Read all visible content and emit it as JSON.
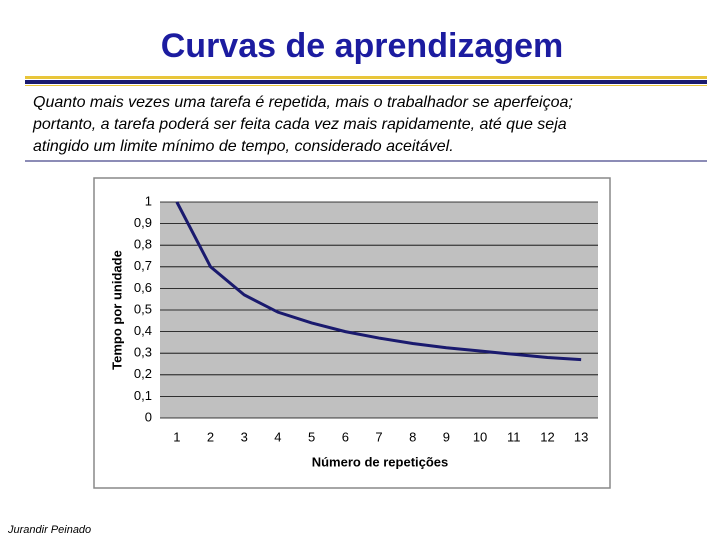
{
  "title": "Curvas de aprendizagem",
  "text_lines": [
    "Quanto mais vezes uma tarefa é repetida, mais o trabalhador se aperfeiçoa;",
    "portanto, a tarefa poderá ser feita cada vez mais rapidamente, até que seja",
    "atingido um limite mínimo de tempo, considerado aceitável."
  ],
  "footer": "Jurandir Peinado",
  "chart_data": {
    "type": "line",
    "x_label": "Número de repetições",
    "y_label": "Tempo por unidade",
    "categories": [
      "1",
      "2",
      "3",
      "4",
      "5",
      "6",
      "7",
      "8",
      "9",
      "10",
      "11",
      "12",
      "13"
    ],
    "values": [
      1,
      0.7,
      0.57,
      0.49,
      0.44,
      0.4,
      0.37,
      0.345,
      0.325,
      0.31,
      0.295,
      0.28,
      0.27
    ],
    "color": "#1a1a6e",
    "ylim": [
      0,
      1
    ],
    "yticks": [
      0,
      {
        "value": 0.1,
        "label": "0,1"
      },
      {
        "value": 0.2,
        "label": "0,2"
      },
      {
        "value": 0.3,
        "label": "0,3"
      },
      {
        "value": 0.4,
        "label": "0,4"
      },
      {
        "value": 0.5,
        "label": "0,5"
      },
      {
        "value": 0.6,
        "label": "0,6"
      },
      {
        "value": 0.7,
        "label": "0,7"
      },
      {
        "value": 0.8,
        "label": "0,8"
      },
      {
        "value": 0.9,
        "label": "0,9"
      },
      1
    ],
    "grid": true
  }
}
